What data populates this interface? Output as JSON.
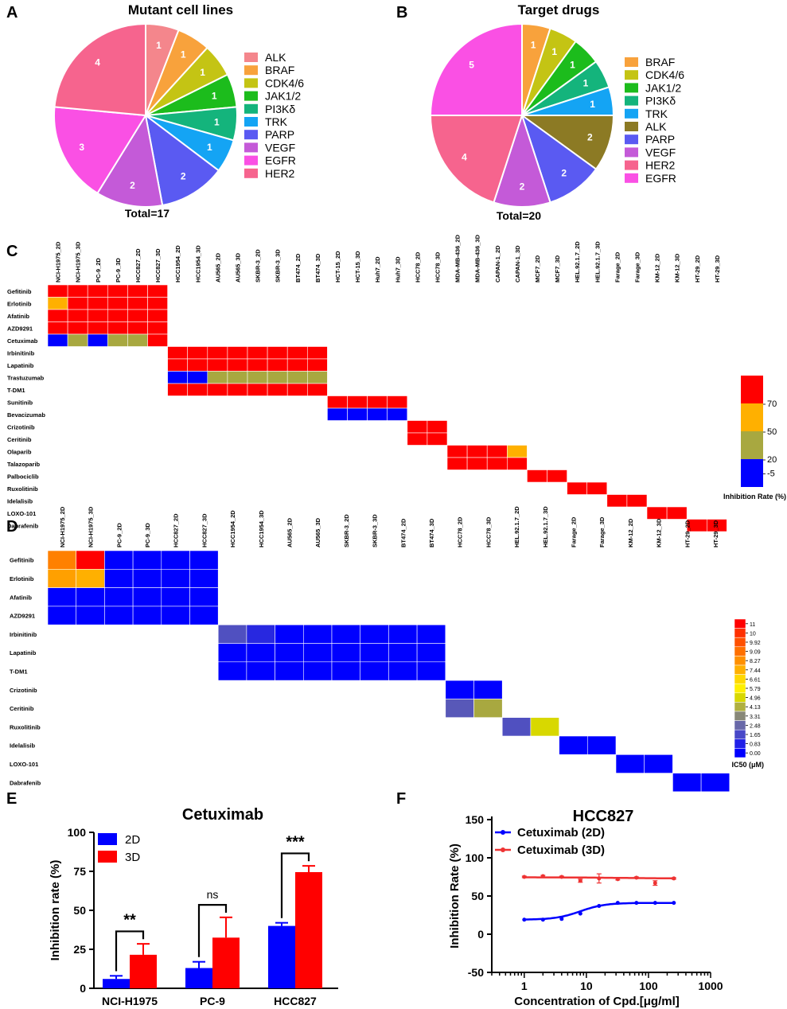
{
  "chart_data": [
    {
      "panel": "A",
      "type": "pie",
      "title": "Mutant cell lines",
      "total_label": "Total=17",
      "slices": [
        {
          "label": "ALK",
          "value": 1,
          "color": "#F4868C"
        },
        {
          "label": "BRAF",
          "value": 1,
          "color": "#F8A23C"
        },
        {
          "label": "CDK4/6",
          "value": 1,
          "color": "#C4C414"
        },
        {
          "label": "JAK1/2",
          "value": 1,
          "color": "#1CBC1C"
        },
        {
          "label": "PI3Kδ",
          "value": 1,
          "color": "#14B47C"
        },
        {
          "label": "TRK",
          "value": 1,
          "color": "#14A4F4"
        },
        {
          "label": "PARP",
          "value": 2,
          "color": "#5A5AF2"
        },
        {
          "label": "VEGF",
          "value": 2,
          "color": "#C45AD8"
        },
        {
          "label": "EGFR",
          "value": 3,
          "color": "#FA50E4"
        },
        {
          "label": "HER2",
          "value": 4,
          "color": "#F6648E"
        }
      ]
    },
    {
      "panel": "B",
      "type": "pie",
      "title": "Target drugs",
      "total_label": "Total=20",
      "slices": [
        {
          "label": "BRAF",
          "value": 1,
          "color": "#F8A23C"
        },
        {
          "label": "CDK4/6",
          "value": 1,
          "color": "#C4C414"
        },
        {
          "label": "JAK1/2",
          "value": 1,
          "color": "#1CBC1C"
        },
        {
          "label": "PI3Kδ",
          "value": 1,
          "color": "#14B47C"
        },
        {
          "label": "TRK",
          "value": 1,
          "color": "#14A4F4"
        },
        {
          "label": "ALK",
          "value": 2,
          "color": "#8C7A24"
        },
        {
          "label": "PARP",
          "value": 2,
          "color": "#5A5AF2"
        },
        {
          "label": "VEGF",
          "value": 2,
          "color": "#C45AD8"
        },
        {
          "label": "HER2",
          "value": 4,
          "color": "#F6648E"
        },
        {
          "label": "EGFR",
          "value": 5,
          "color": "#FA50E4"
        }
      ]
    },
    {
      "panel": "C",
      "type": "heatmap",
      "colorbar_title": "Inhibition Rate (%)",
      "colorbar_ticks": [
        "70",
        "50",
        "20",
        "-5"
      ],
      "colorbar_colors": [
        "#FF0000",
        "#FFB000",
        "#A8A840",
        "#0000FF"
      ],
      "columns": [
        "NCI-H1975_2D",
        "NCI-H1975_3D",
        "PC-9_2D",
        "PC-9_3D",
        "HCC827_2D",
        "HCC827_3D",
        "HCC1954_2D",
        "HCC1954_3D",
        "AU565_2D",
        "AU565_3D",
        "SKBR-3_2D",
        "SKBR-3_3D",
        "BT474_2D",
        "BT474_3D",
        "HCT-15_2D",
        "HCT-15_3D",
        "Huh7_2D",
        "Huh7_3D",
        "HCC78_2D",
        "HCC78_3D",
        "MDA-MB-436_2D",
        "MDA-MB-436_3D",
        "CAPAN-1_2D",
        "CAPAN-1_3D",
        "MCF7_2D",
        "MCF7_3D",
        "HEL.92.1.7_2D",
        "HEL.92.1.7_3D",
        "Farage_2D",
        "Farage_3D",
        "KM-12_2D",
        "KM-12_3D",
        "HT-29_2D",
        "HT-29_3D"
      ],
      "rows": [
        "Gefitinib",
        "Erlotinib",
        "Afatinib",
        "AZD9291",
        "Cetuximab",
        "Irbinitinib",
        "Lapatinib",
        "Trastuzumab",
        "T-DM1",
        "Sunitinib",
        "Bevacizumab",
        "Crizotinib",
        "Ceritinib",
        "Olaparib",
        "Talazoparib",
        "Palbociclib",
        "Ruxolitinib",
        "Idelalisib",
        "LOXO-101",
        "Dabrafenib"
      ],
      "cells": [
        [
          0,
          0,
          "#FF0000"
        ],
        [
          0,
          1,
          "#FF0000"
        ],
        [
          0,
          2,
          "#FF0000"
        ],
        [
          0,
          3,
          "#FF0000"
        ],
        [
          0,
          4,
          "#FF0000"
        ],
        [
          0,
          5,
          "#FF0000"
        ],
        [
          1,
          0,
          "#FFB000"
        ],
        [
          1,
          1,
          "#FF0000"
        ],
        [
          1,
          2,
          "#FF0000"
        ],
        [
          1,
          3,
          "#FF0000"
        ],
        [
          1,
          4,
          "#FF0000"
        ],
        [
          1,
          5,
          "#FF0000"
        ],
        [
          2,
          0,
          "#FF0000"
        ],
        [
          2,
          1,
          "#FF0000"
        ],
        [
          2,
          2,
          "#FF0000"
        ],
        [
          2,
          3,
          "#FF0000"
        ],
        [
          2,
          4,
          "#FF0000"
        ],
        [
          2,
          5,
          "#FF0000"
        ],
        [
          3,
          0,
          "#FF0000"
        ],
        [
          3,
          1,
          "#FF0000"
        ],
        [
          3,
          2,
          "#FF0000"
        ],
        [
          3,
          3,
          "#FF0000"
        ],
        [
          3,
          4,
          "#FF0000"
        ],
        [
          3,
          5,
          "#FF0000"
        ],
        [
          4,
          0,
          "#0000FF"
        ],
        [
          4,
          1,
          "#A8A840"
        ],
        [
          4,
          2,
          "#0000FF"
        ],
        [
          4,
          3,
          "#A8A840"
        ],
        [
          4,
          4,
          "#A8A840"
        ],
        [
          4,
          5,
          "#FF0000"
        ],
        [
          5,
          6,
          "#FF0000"
        ],
        [
          5,
          7,
          "#FF0000"
        ],
        [
          5,
          8,
          "#FF0000"
        ],
        [
          5,
          9,
          "#FF0000"
        ],
        [
          5,
          10,
          "#FF0000"
        ],
        [
          5,
          11,
          "#FF0000"
        ],
        [
          5,
          12,
          "#FF0000"
        ],
        [
          5,
          13,
          "#FF0000"
        ],
        [
          6,
          6,
          "#FF0000"
        ],
        [
          6,
          7,
          "#FF0000"
        ],
        [
          6,
          8,
          "#FF0000"
        ],
        [
          6,
          9,
          "#FF0000"
        ],
        [
          6,
          10,
          "#FF0000"
        ],
        [
          6,
          11,
          "#FF0000"
        ],
        [
          6,
          12,
          "#FF0000"
        ],
        [
          6,
          13,
          "#FF0000"
        ],
        [
          7,
          6,
          "#0000FF"
        ],
        [
          7,
          7,
          "#0000FF"
        ],
        [
          7,
          8,
          "#A8A840"
        ],
        [
          7,
          9,
          "#A8A840"
        ],
        [
          7,
          10,
          "#A8A840"
        ],
        [
          7,
          11,
          "#A8A840"
        ],
        [
          7,
          12,
          "#A8A840"
        ],
        [
          7,
          13,
          "#A8A840"
        ],
        [
          8,
          6,
          "#FF0000"
        ],
        [
          8,
          7,
          "#FF0000"
        ],
        [
          8,
          8,
          "#FF0000"
        ],
        [
          8,
          9,
          "#FF0000"
        ],
        [
          8,
          10,
          "#FF0000"
        ],
        [
          8,
          11,
          "#FF0000"
        ],
        [
          8,
          12,
          "#FF0000"
        ],
        [
          8,
          13,
          "#FF0000"
        ],
        [
          9,
          14,
          "#FF0000"
        ],
        [
          9,
          15,
          "#FF0000"
        ],
        [
          9,
          16,
          "#FF0000"
        ],
        [
          9,
          17,
          "#FF0000"
        ],
        [
          10,
          14,
          "#0000FF"
        ],
        [
          10,
          15,
          "#0000FF"
        ],
        [
          10,
          16,
          "#0000FF"
        ],
        [
          10,
          17,
          "#0000FF"
        ],
        [
          11,
          18,
          "#FF0000"
        ],
        [
          11,
          19,
          "#FF0000"
        ],
        [
          12,
          18,
          "#FF0000"
        ],
        [
          12,
          19,
          "#FF0000"
        ],
        [
          13,
          20,
          "#FF0000"
        ],
        [
          13,
          21,
          "#FF0000"
        ],
        [
          13,
          22,
          "#FF0000"
        ],
        [
          13,
          23,
          "#FFB000"
        ],
        [
          14,
          20,
          "#FF0000"
        ],
        [
          14,
          21,
          "#FF0000"
        ],
        [
          14,
          22,
          "#FF0000"
        ],
        [
          14,
          23,
          "#FF0000"
        ],
        [
          15,
          24,
          "#FF0000"
        ],
        [
          15,
          25,
          "#FF0000"
        ],
        [
          16,
          26,
          "#FF0000"
        ],
        [
          16,
          27,
          "#FF0000"
        ],
        [
          17,
          28,
          "#FF0000"
        ],
        [
          17,
          29,
          "#FF0000"
        ],
        [
          18,
          30,
          "#FF0000"
        ],
        [
          18,
          31,
          "#FF0000"
        ],
        [
          19,
          32,
          "#FF0000"
        ],
        [
          19,
          33,
          "#FF0000"
        ]
      ]
    },
    {
      "panel": "D",
      "type": "heatmap",
      "colorbar_title": "IC50 (μM)",
      "colorbar_ticks": [
        "11",
        "10",
        "9.92",
        "9.09",
        "8.27",
        "7.44",
        "6.61",
        "5.79",
        "4.96",
        "4.13",
        "3.31",
        "2.48",
        "1.65",
        "0.83",
        "0.00"
      ],
      "colorbar_colors": [
        "#FF0000",
        "#FF3000",
        "#FF5000",
        "#FF7000",
        "#FF9000",
        "#FFB000",
        "#FFD800",
        "#FFF000",
        "#D8D800",
        "#B0B040",
        "#888878",
        "#6868A8",
        "#4848C8",
        "#2020E8",
        "#0000FF"
      ],
      "columns": [
        "NCI-H1975_2D",
        "NCI-H1975_3D",
        "PC-9_2D",
        "PC-9_3D",
        "HCC827_2D",
        "HCC827_3D",
        "HCC1954_2D",
        "HCC1954_3D",
        "AU565_2D",
        "AU565_3D",
        "SKBR-3_2D",
        "SKBR-3_3D",
        "BT474_2D",
        "BT474_3D",
        "HCC78_2D",
        "HCC78_3D",
        "HEL.92.1.7_2D",
        "HEL.92.1.7_3D",
        "Farage_2D",
        "Farage_3D",
        "KM-12_2D",
        "KM-12_3D",
        "HT-29_2D",
        "HT-29_3D"
      ],
      "rows": [
        "Gefitinib",
        "Erlotinib",
        "Afatinib",
        "AZD9291",
        "Irbinitinib",
        "Lapatinib",
        "T-DM1",
        "Crizotinib",
        "Ceritinib",
        "Ruxolitinib",
        "Idelalisib",
        "LOXO-101",
        "Dabrafenib"
      ],
      "cells": [
        [
          0,
          0,
          "#FF8000"
        ],
        [
          0,
          1,
          "#FF0000"
        ],
        [
          0,
          2,
          "#0000FF"
        ],
        [
          0,
          3,
          "#0000FF"
        ],
        [
          0,
          4,
          "#0000FF"
        ],
        [
          0,
          5,
          "#0000FF"
        ],
        [
          1,
          0,
          "#FFA000"
        ],
        [
          1,
          1,
          "#FFB000"
        ],
        [
          1,
          2,
          "#0000FF"
        ],
        [
          1,
          3,
          "#0000FF"
        ],
        [
          1,
          4,
          "#0000FF"
        ],
        [
          1,
          5,
          "#0000FF"
        ],
        [
          2,
          0,
          "#0000FF"
        ],
        [
          2,
          1,
          "#0000FF"
        ],
        [
          2,
          2,
          "#0000FF"
        ],
        [
          2,
          3,
          "#0000FF"
        ],
        [
          2,
          4,
          "#0000FF"
        ],
        [
          2,
          5,
          "#0000FF"
        ],
        [
          3,
          0,
          "#0000FF"
        ],
        [
          3,
          1,
          "#0000FF"
        ],
        [
          3,
          2,
          "#0000FF"
        ],
        [
          3,
          3,
          "#0000FF"
        ],
        [
          3,
          4,
          "#0000FF"
        ],
        [
          3,
          5,
          "#0000FF"
        ],
        [
          4,
          6,
          "#5050C0"
        ],
        [
          4,
          7,
          "#2828E0"
        ],
        [
          4,
          8,
          "#0000FF"
        ],
        [
          4,
          9,
          "#0000FF"
        ],
        [
          4,
          10,
          "#0000FF"
        ],
        [
          4,
          11,
          "#0000FF"
        ],
        [
          4,
          12,
          "#0000FF"
        ],
        [
          4,
          13,
          "#0000FF"
        ],
        [
          5,
          6,
          "#0000FF"
        ],
        [
          5,
          7,
          "#0000FF"
        ],
        [
          5,
          8,
          "#0000FF"
        ],
        [
          5,
          9,
          "#0000FF"
        ],
        [
          5,
          10,
          "#0000FF"
        ],
        [
          5,
          11,
          "#0000FF"
        ],
        [
          5,
          12,
          "#0000FF"
        ],
        [
          5,
          13,
          "#0000FF"
        ],
        [
          6,
          6,
          "#0000FF"
        ],
        [
          6,
          7,
          "#0000FF"
        ],
        [
          6,
          8,
          "#0000FF"
        ],
        [
          6,
          9,
          "#0000FF"
        ],
        [
          6,
          10,
          "#0000FF"
        ],
        [
          6,
          11,
          "#0000FF"
        ],
        [
          6,
          12,
          "#0000FF"
        ],
        [
          6,
          13,
          "#0000FF"
        ],
        [
          7,
          14,
          "#0000FF"
        ],
        [
          7,
          15,
          "#0000FF"
        ],
        [
          8,
          14,
          "#5858B8"
        ],
        [
          8,
          15,
          "#A8A840"
        ],
        [
          9,
          16,
          "#5050C0"
        ],
        [
          9,
          17,
          "#D8D800"
        ],
        [
          10,
          18,
          "#0000FF"
        ],
        [
          10,
          19,
          "#0000FF"
        ],
        [
          11,
          20,
          "#0000FF"
        ],
        [
          11,
          21,
          "#0000FF"
        ],
        [
          12,
          22,
          "#0000FF"
        ],
        [
          12,
          23,
          "#0000FF"
        ]
      ]
    },
    {
      "panel": "E",
      "type": "bar",
      "title": "Cetuximab",
      "ylabel": "Inhibition rate (%)",
      "xlabel": "",
      "ylim": [
        0,
        100
      ],
      "yticks": [
        "0",
        "25",
        "50",
        "75",
        "100"
      ],
      "categories": [
        "NCI-H1975",
        "PC-9",
        "HCC827"
      ],
      "series": [
        {
          "name": "2D",
          "color": "#0000FF",
          "values": [
            6,
            13,
            40
          ],
          "errors": [
            2,
            4,
            2
          ]
        },
        {
          "name": "3D",
          "color": "#FF0000",
          "values": [
            21.5,
            32.5,
            74.5
          ],
          "errors": [
            7,
            13,
            4
          ]
        }
      ],
      "significance": [
        "**",
        "ns",
        "***"
      ]
    },
    {
      "panel": "F",
      "type": "line",
      "title": "HCC827",
      "xlabel": "Concentration of Cpd.[μg/ml]",
      "ylabel": "Inhibition Rate (%)",
      "xscale": "log",
      "xlim": [
        0.3,
        1000
      ],
      "ylim": [
        -50,
        150
      ],
      "xticks": [
        "1",
        "10",
        "100",
        "1000"
      ],
      "yticks": [
        "-50",
        "0",
        "50",
        "100",
        "150"
      ],
      "series": [
        {
          "name": "Cetuximab (2D)",
          "color": "#0000FF",
          "x": [
            1,
            2,
            4,
            8,
            16,
            32,
            64,
            128,
            256
          ],
          "y": [
            19,
            19,
            20,
            27,
            37,
            41,
            41,
            41,
            41
          ],
          "fit": {
            "bottom": 19,
            "top": 41,
            "ec50": 8,
            "hill": 2.2
          }
        },
        {
          "name": "Cetuximab (3D)",
          "color": "#EE3333",
          "x": [
            1,
            2,
            4,
            8,
            16,
            32,
            64,
            128,
            256
          ],
          "y": [
            75,
            76,
            75,
            70,
            73,
            72,
            74,
            67,
            73
          ],
          "err": [
            1,
            1,
            1,
            2,
            6,
            1,
            1,
            3,
            1
          ],
          "fit": {
            "bottom": 74.5,
            "top": 73,
            "ec50": 30,
            "hill": 1
          }
        }
      ]
    }
  ],
  "panel_letters": [
    "A",
    "B",
    "C",
    "D",
    "E",
    "F"
  ]
}
